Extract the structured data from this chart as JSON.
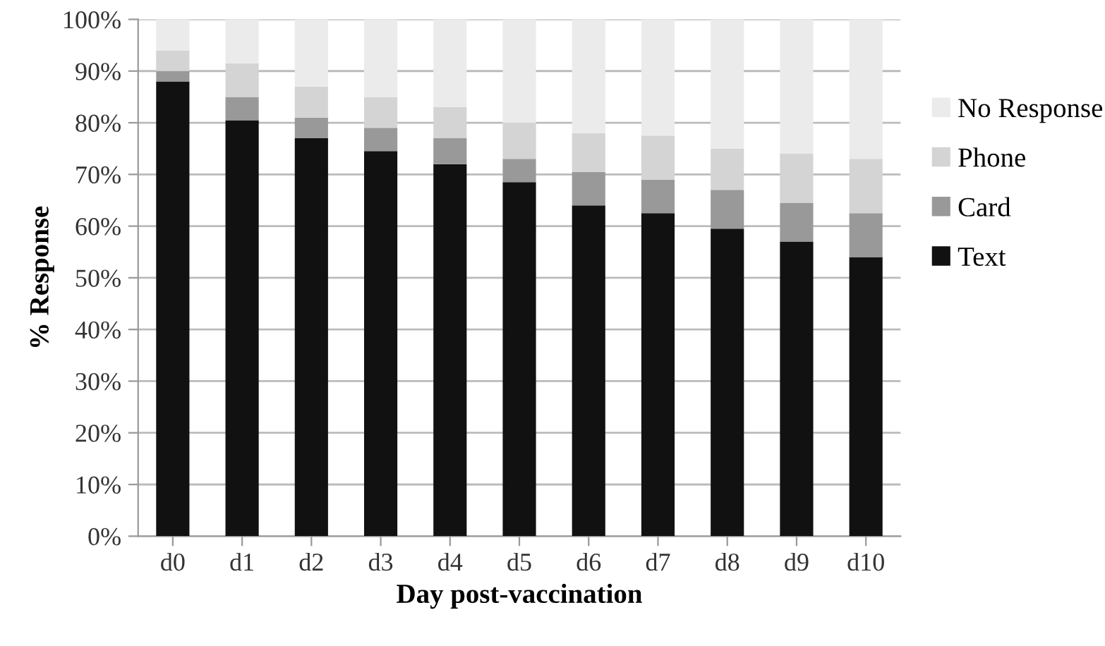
{
  "chart_data": {
    "type": "bar",
    "stacked": true,
    "xlabel": "Day post-vaccination",
    "ylabel": "% Response",
    "categories": [
      "d0",
      "d1",
      "d2",
      "d3",
      "d4",
      "d5",
      "d6",
      "d7",
      "d8",
      "d9",
      "d10"
    ],
    "series": [
      {
        "name": "Text",
        "color": "#111111",
        "values": [
          88,
          80.5,
          77,
          74.5,
          72,
          68.5,
          64,
          62.5,
          59.5,
          57,
          54
        ]
      },
      {
        "name": "Card",
        "color": "#999999",
        "values": [
          2,
          4.5,
          4,
          4.5,
          5,
          4.5,
          6.5,
          6.5,
          7.5,
          7.5,
          8.5
        ]
      },
      {
        "name": "Phone",
        "color": "#d4d4d4",
        "values": [
          4,
          6.5,
          6,
          6,
          6,
          7,
          7.5,
          8.5,
          8,
          9.5,
          10.5
        ]
      },
      {
        "name": "No Response",
        "color": "#ebebeb",
        "values": [
          6,
          8.5,
          13,
          15,
          17,
          20,
          22,
          22.5,
          25,
          26,
          27
        ]
      }
    ],
    "ylim": [
      0,
      100
    ],
    "yticks": [
      {
        "value": 0,
        "label": "0%"
      },
      {
        "value": 10,
        "label": "10%"
      },
      {
        "value": 20,
        "label": "20%"
      },
      {
        "value": 30,
        "label": "30%"
      },
      {
        "value": 40,
        "label": "40%"
      },
      {
        "value": 50,
        "label": "50%"
      },
      {
        "value": 60,
        "label": "60%"
      },
      {
        "value": 70,
        "label": "70%"
      },
      {
        "value": 80,
        "label": "80%"
      },
      {
        "value": 90,
        "label": "90%"
      },
      {
        "value": 100,
        "label": "100%"
      }
    ],
    "grid": "y",
    "legend": "right"
  }
}
